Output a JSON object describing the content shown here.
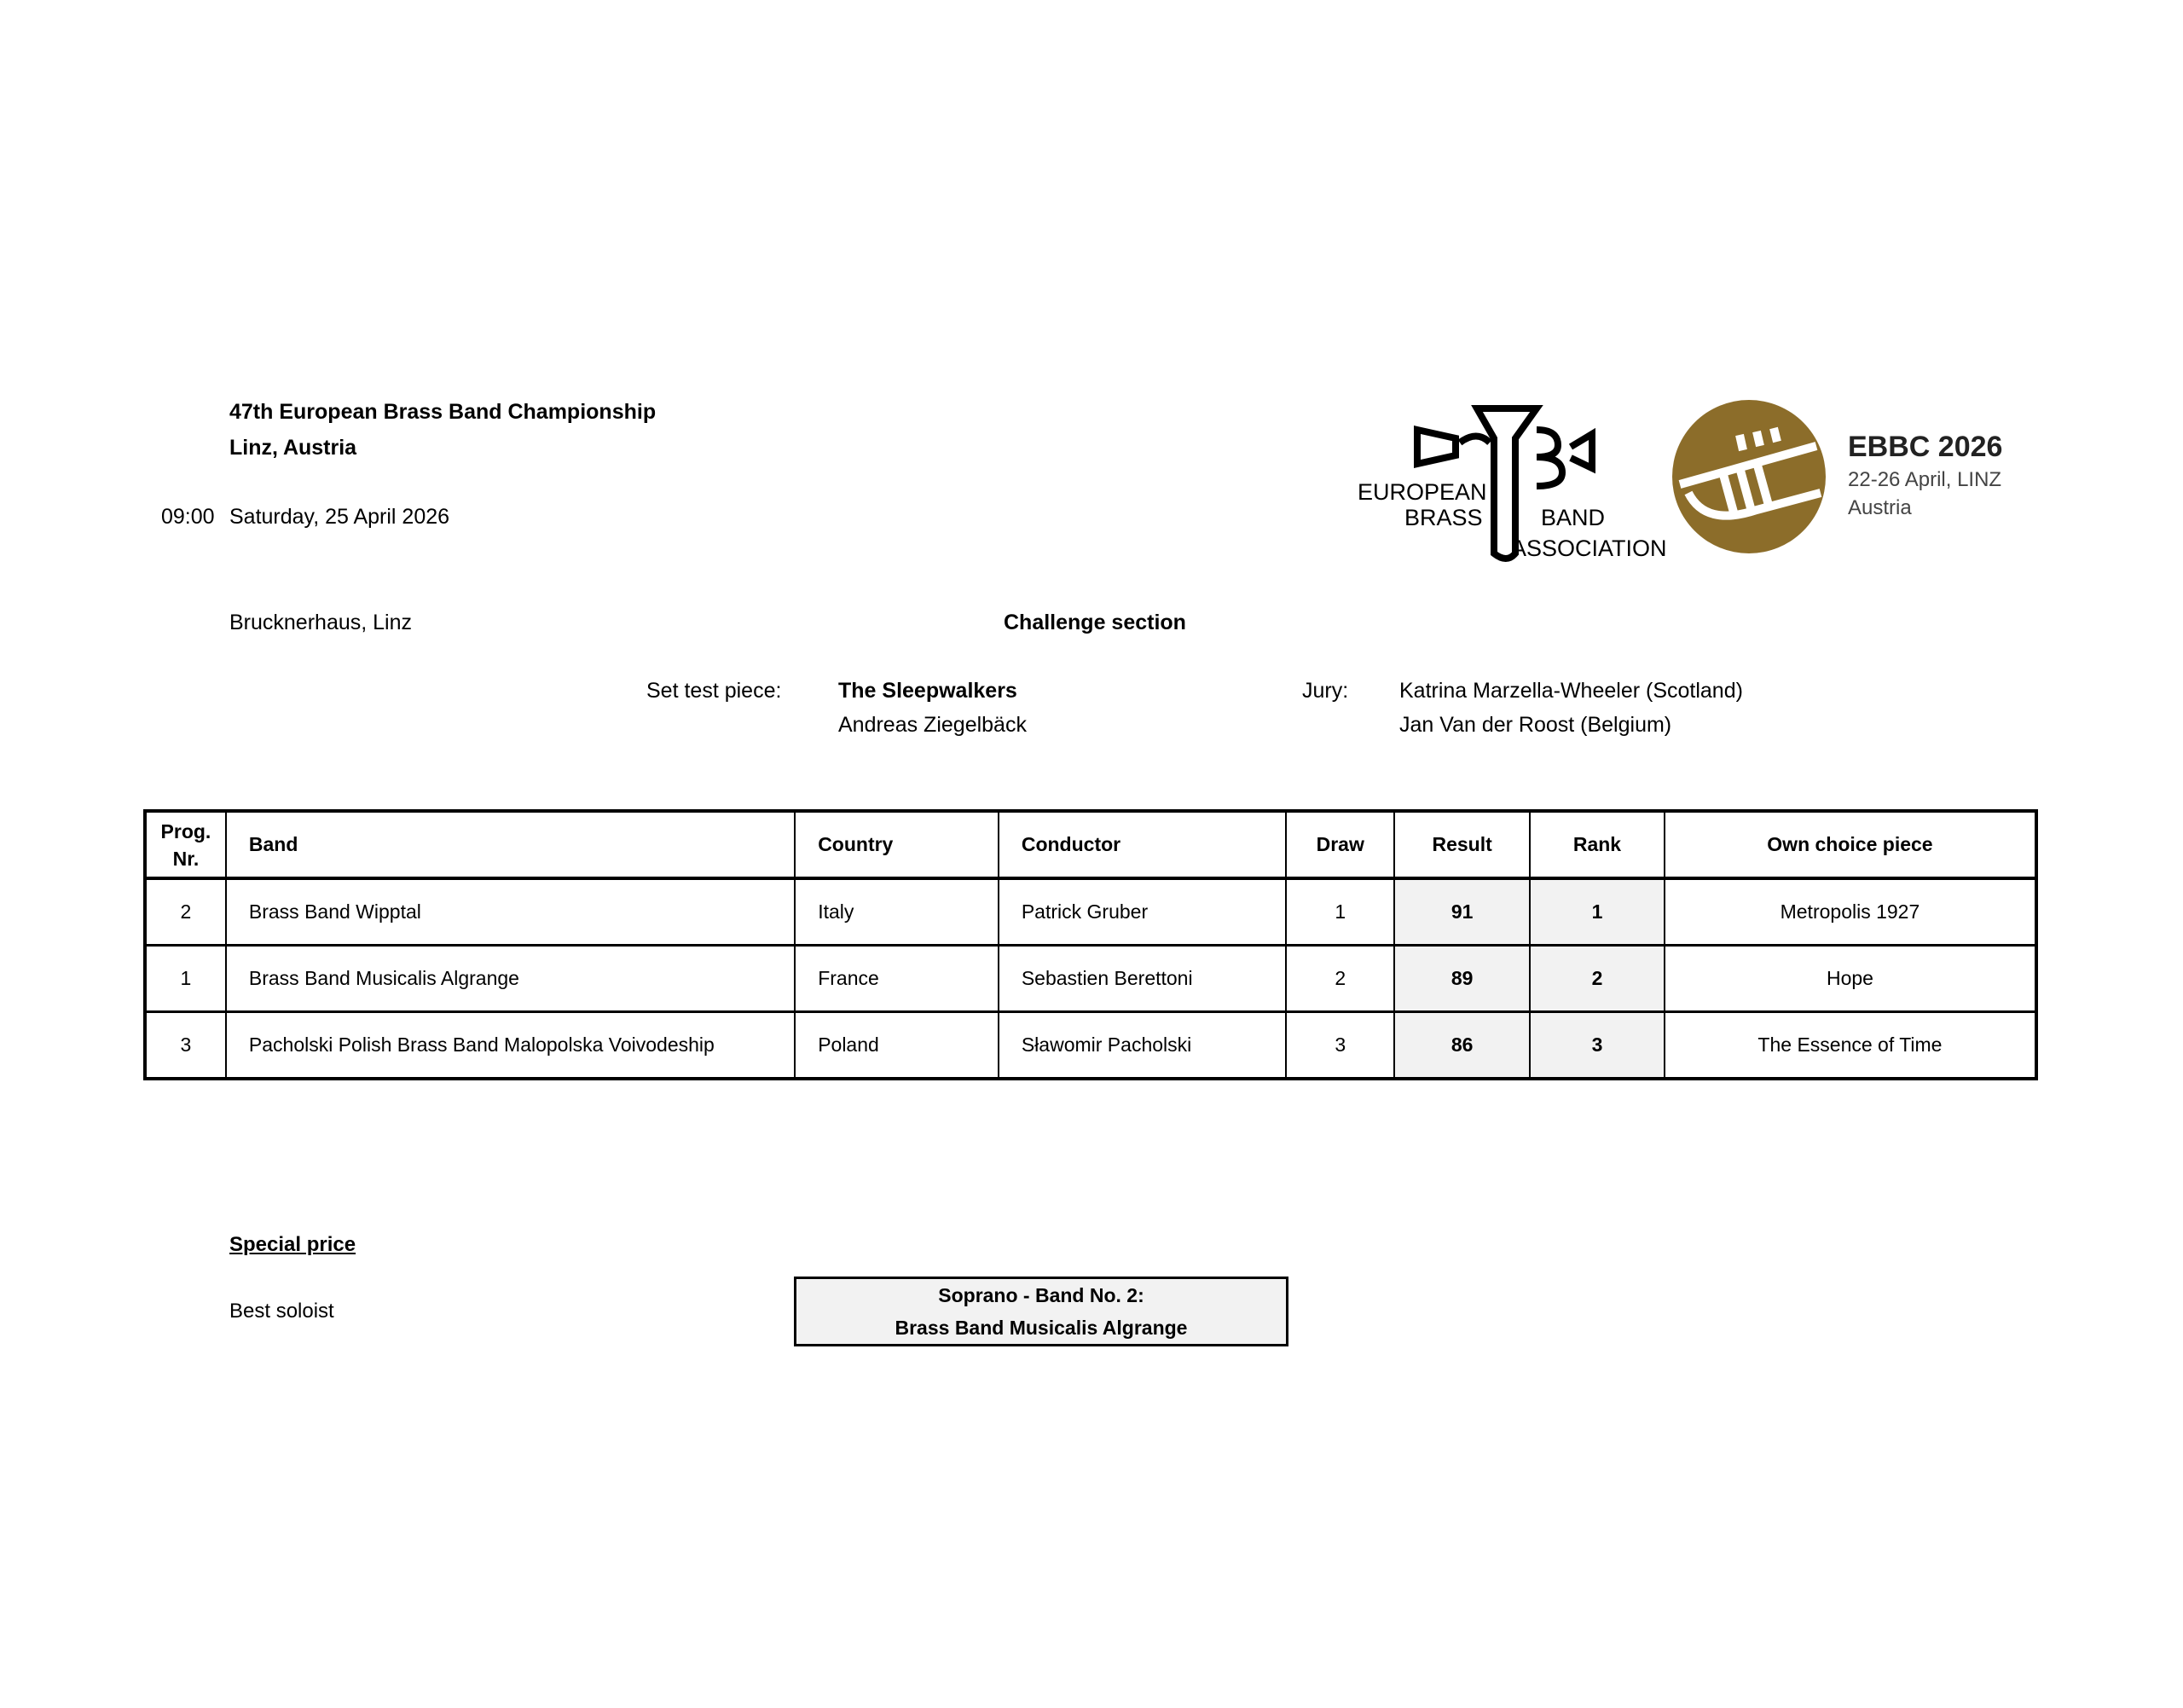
{
  "header": {
    "title": "47th European Brass Band Championship",
    "location": "Linz, Austria",
    "time": "09:00",
    "date": "Saturday, 25 April 2026",
    "venue": "Brucknerhaus, Linz",
    "section": "Challenge section"
  },
  "test_piece": {
    "label": "Set test piece:",
    "title": "The Sleepwalkers",
    "composer": "Andreas Ziegelbäck"
  },
  "jury": {
    "label": "Jury:",
    "members": [
      "Katrina Marzella-Wheeler (Scotland)",
      "Jan Van der Roost (Belgium)"
    ]
  },
  "logos": {
    "ebba": {
      "line1": "EUROPEAN",
      "line2": "BRASS",
      "line3": "BAND",
      "line4": "ASSOCIATION",
      "mark": "EBBA"
    },
    "ebbc": {
      "title": "EBBC 2026",
      "dates": "22-26 April, LINZ",
      "country": "Austria",
      "color": "#8c6d2a"
    }
  },
  "table": {
    "headers": [
      "Prog. Nr.",
      "Band",
      "Country",
      "Conductor",
      "Draw",
      "Result",
      "Rank",
      "Own choice piece"
    ],
    "rows": [
      [
        "2",
        "Brass Band Wipptal",
        "Italy",
        "Patrick Gruber",
        "1",
        "91",
        "1",
        "Metropolis 1927"
      ],
      [
        "1",
        "Brass Band Musicalis Algrange",
        "France",
        "Sebastien Berettoni",
        "2",
        "89",
        "2",
        "Hope"
      ],
      [
        "3",
        "Pacholski Polish Brass Band Malopolska Voivodeship",
        "Poland",
        "Sławomir Pacholski",
        "3",
        "86",
        "3",
        "The Essence of Time"
      ]
    ]
  },
  "special": {
    "heading": "Special price",
    "label": "Best soloist",
    "winner_line1": "Soprano - Band No. 2:",
    "winner_line2": "Brass Band Musicalis Algrange"
  }
}
